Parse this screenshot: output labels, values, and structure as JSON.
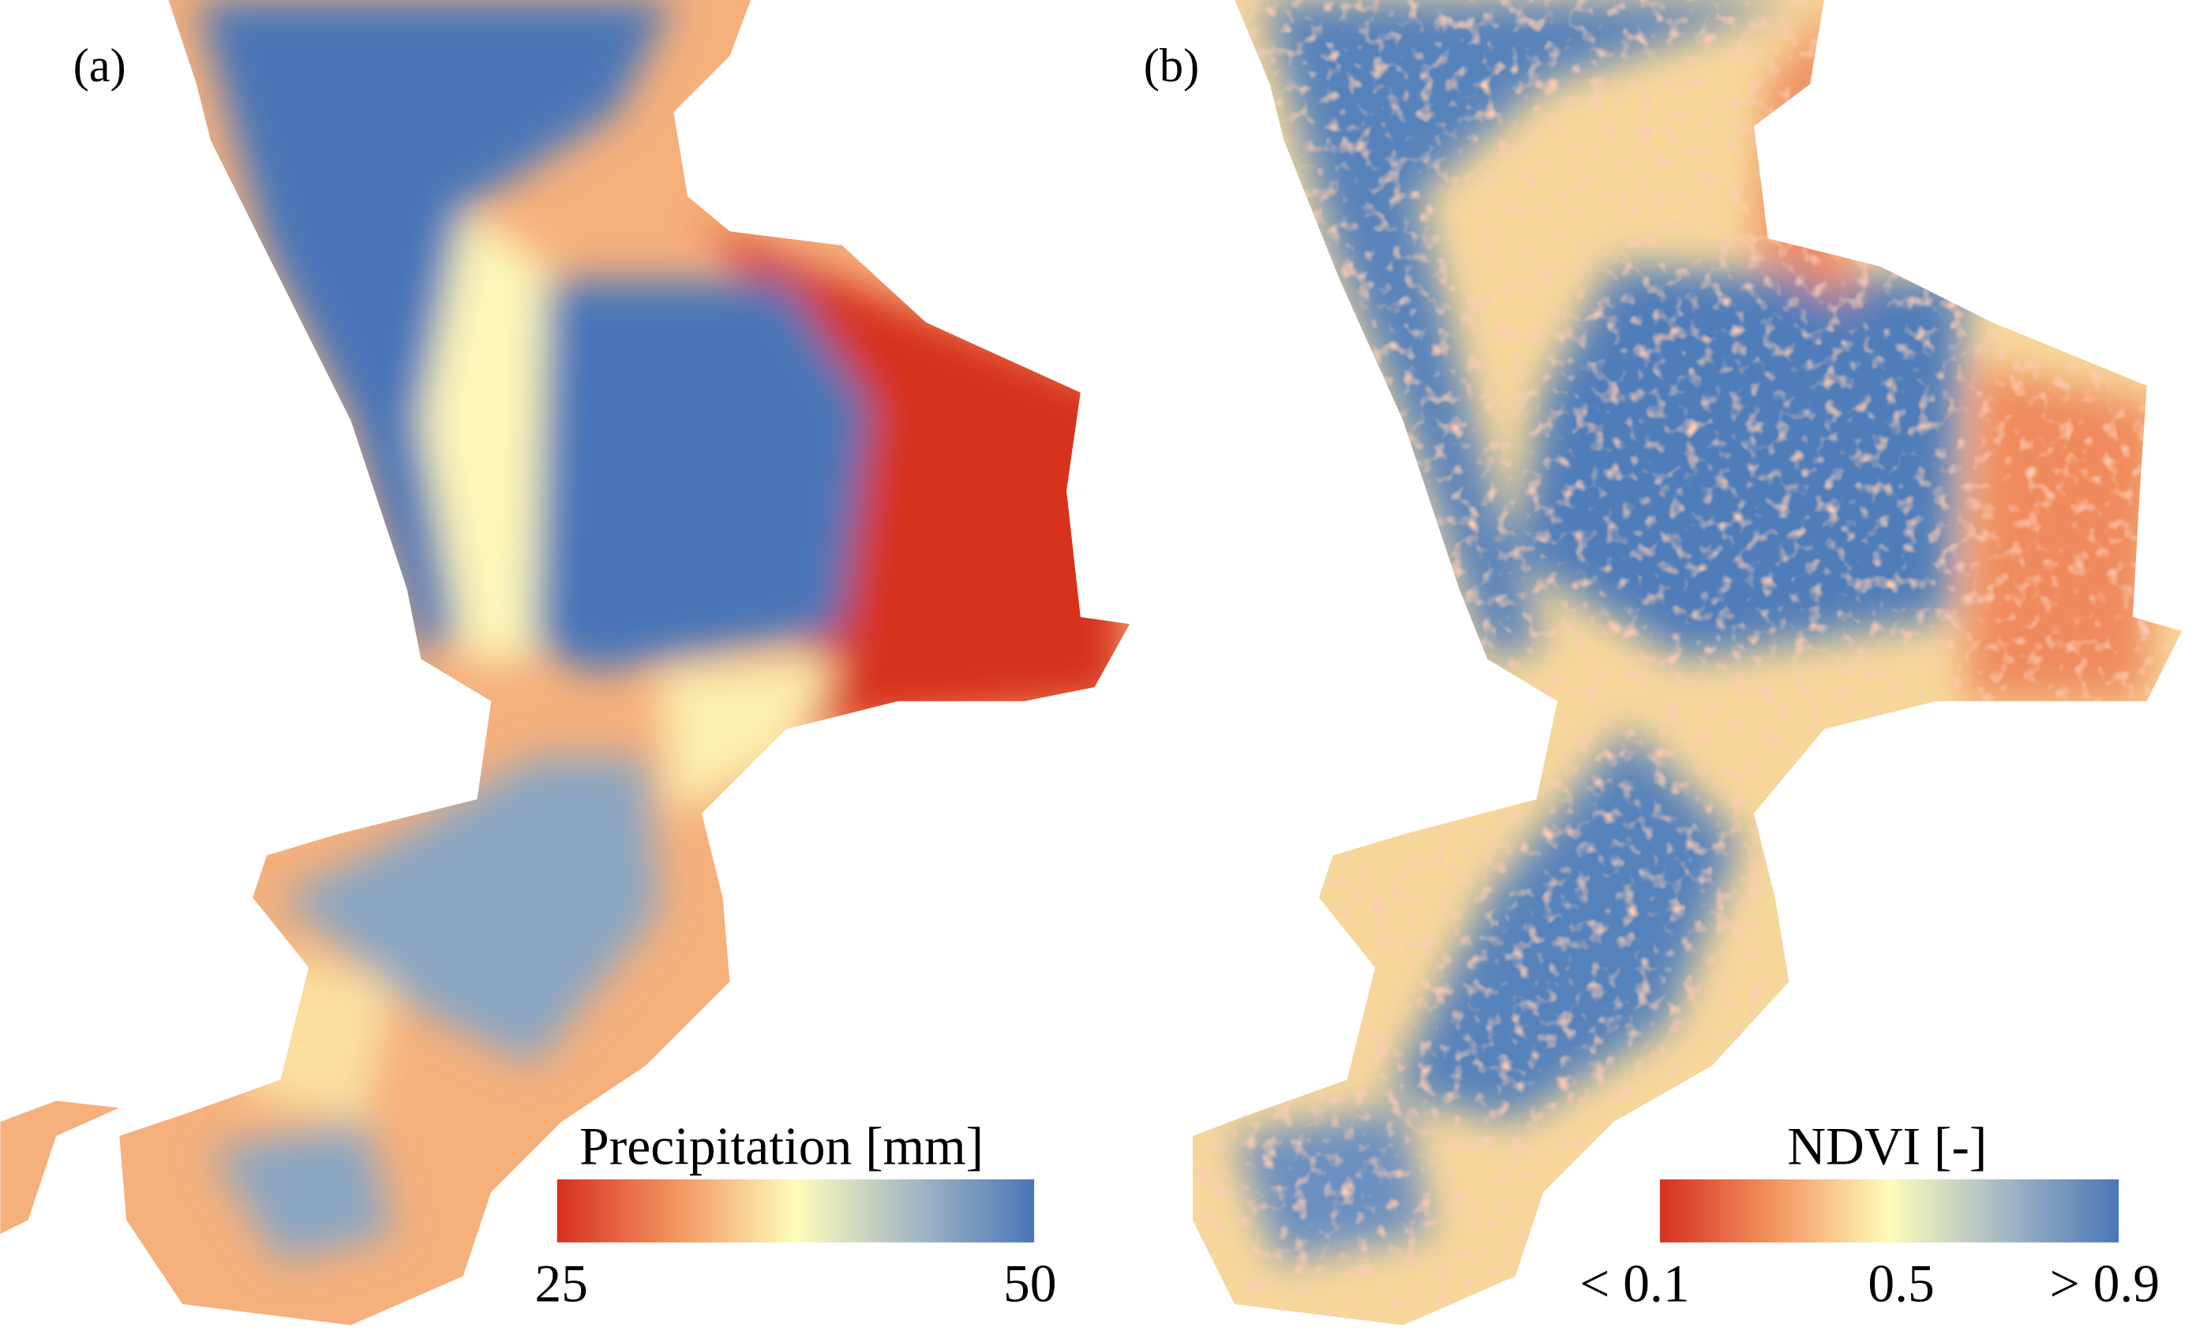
{
  "panels": [
    {
      "label": "(a)",
      "legend": {
        "title": "Precipitation [mm]",
        "ticks": [
          "25",
          "50"
        ]
      }
    },
    {
      "label": "(b)",
      "legend": {
        "title": "NDVI [-]",
        "ticks": [
          "< 0.1",
          "0.5",
          "> 0.9"
        ]
      }
    }
  ]
}
